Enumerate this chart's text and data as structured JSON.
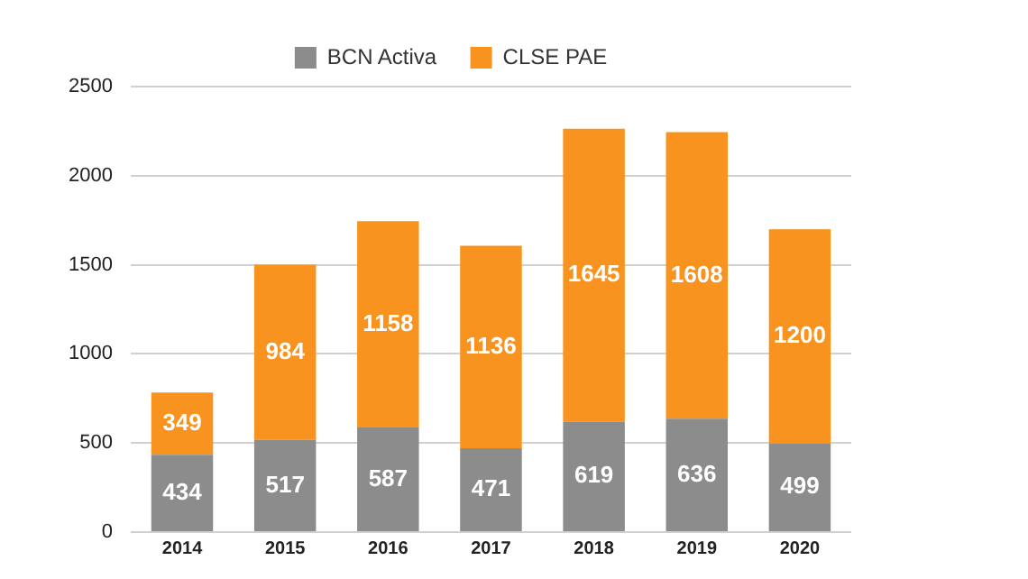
{
  "chart_data": {
    "type": "bar",
    "stacked": true,
    "categories": [
      "2014",
      "2015",
      "2016",
      "2017",
      "2018",
      "2019",
      "2020"
    ],
    "series": [
      {
        "name": "BCN Activa",
        "color": "#8c8c8c",
        "values": [
          434,
          517,
          587,
          471,
          619,
          636,
          499
        ]
      },
      {
        "name": "CLSE PAE",
        "color": "#f7931e",
        "values": [
          349,
          984,
          1158,
          1136,
          1645,
          1608,
          1200
        ]
      }
    ],
    "ylim": [
      0,
      2500
    ],
    "yticks": [
      0,
      500,
      1000,
      1500,
      2000,
      2500
    ],
    "grid": "y",
    "legend": "top",
    "data_labels": true
  }
}
